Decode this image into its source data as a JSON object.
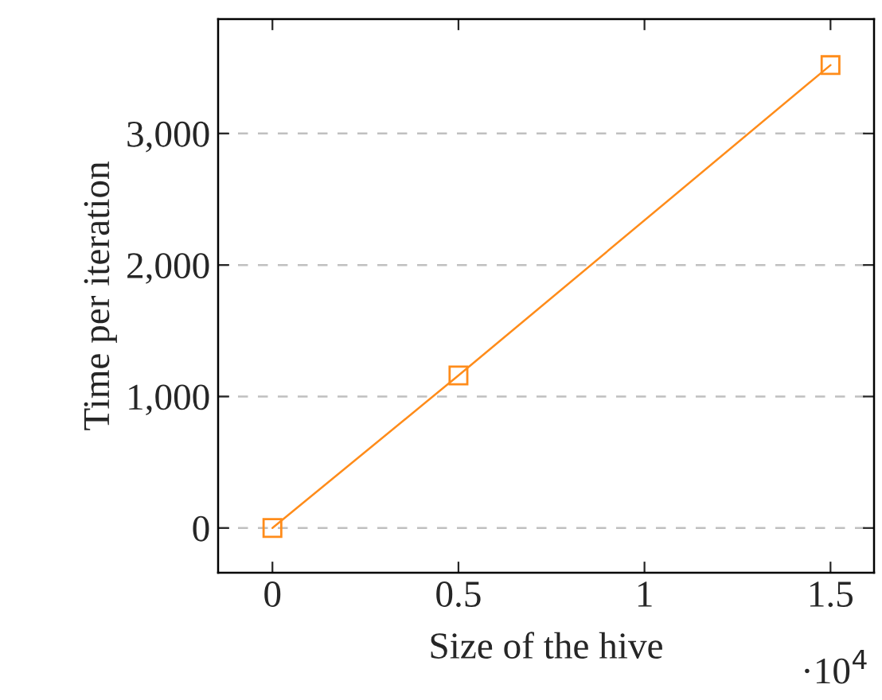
{
  "chart_data": {
    "type": "line",
    "xlabel": "Size of the hive",
    "ylabel": "Time per iteration",
    "x": [
      0,
      0.5,
      1.5
    ],
    "series": [
      {
        "color": "#ff8c1a",
        "values": [
          0,
          1160,
          3520
        ]
      }
    ],
    "marker": "square",
    "line_style": "solid",
    "xlim": [
      -0.146,
      1.617
    ],
    "ylim": [
      -340,
      3870
    ],
    "xticks": [
      0,
      0.5,
      1,
      1.5
    ],
    "yticks": [
      0,
      {
        "value": 1000,
        "label": "1,000"
      },
      {
        "value": 2000,
        "label": "2,000"
      },
      {
        "value": 3000,
        "label": "3,000"
      }
    ],
    "grid": "y",
    "legend": false,
    "annotations": [
      "·10$^{4}$"
    ]
  }
}
